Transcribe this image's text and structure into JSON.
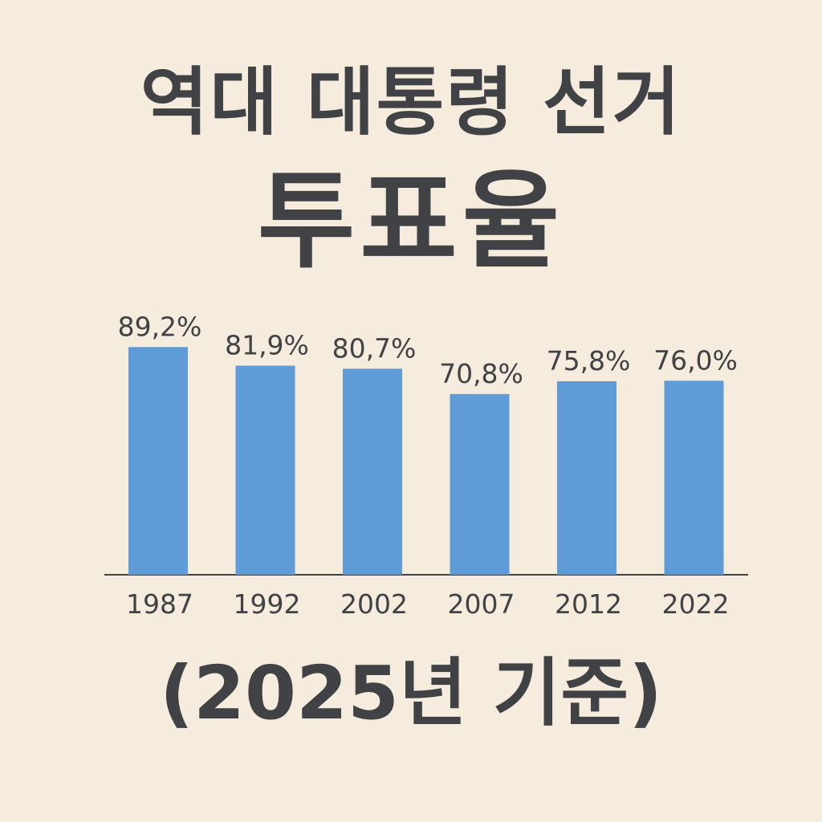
{
  "title": {
    "line1": "역대 대통령 선거",
    "line2": "투표율"
  },
  "footer_note": "(2025년 기준)",
  "colors": {
    "background": "#f5ecde",
    "bar": "#5f9bd6",
    "text": "#404245",
    "axis": "#404245"
  },
  "chart_data": {
    "type": "bar",
    "categories": [
      "1987",
      "1992",
      "2002",
      "2007",
      "2012",
      "2022"
    ],
    "values": [
      89.2,
      81.9,
      80.7,
      70.8,
      75.8,
      76.0
    ],
    "value_labels": [
      "89,2%",
      "81,9%",
      "80,7%",
      "70,8%",
      "75,8%",
      "76,0%"
    ],
    "title": "역대 대통령 선거 투표율",
    "xlabel": "",
    "ylabel": "",
    "unit": "%",
    "grid": false,
    "legend": "none"
  }
}
